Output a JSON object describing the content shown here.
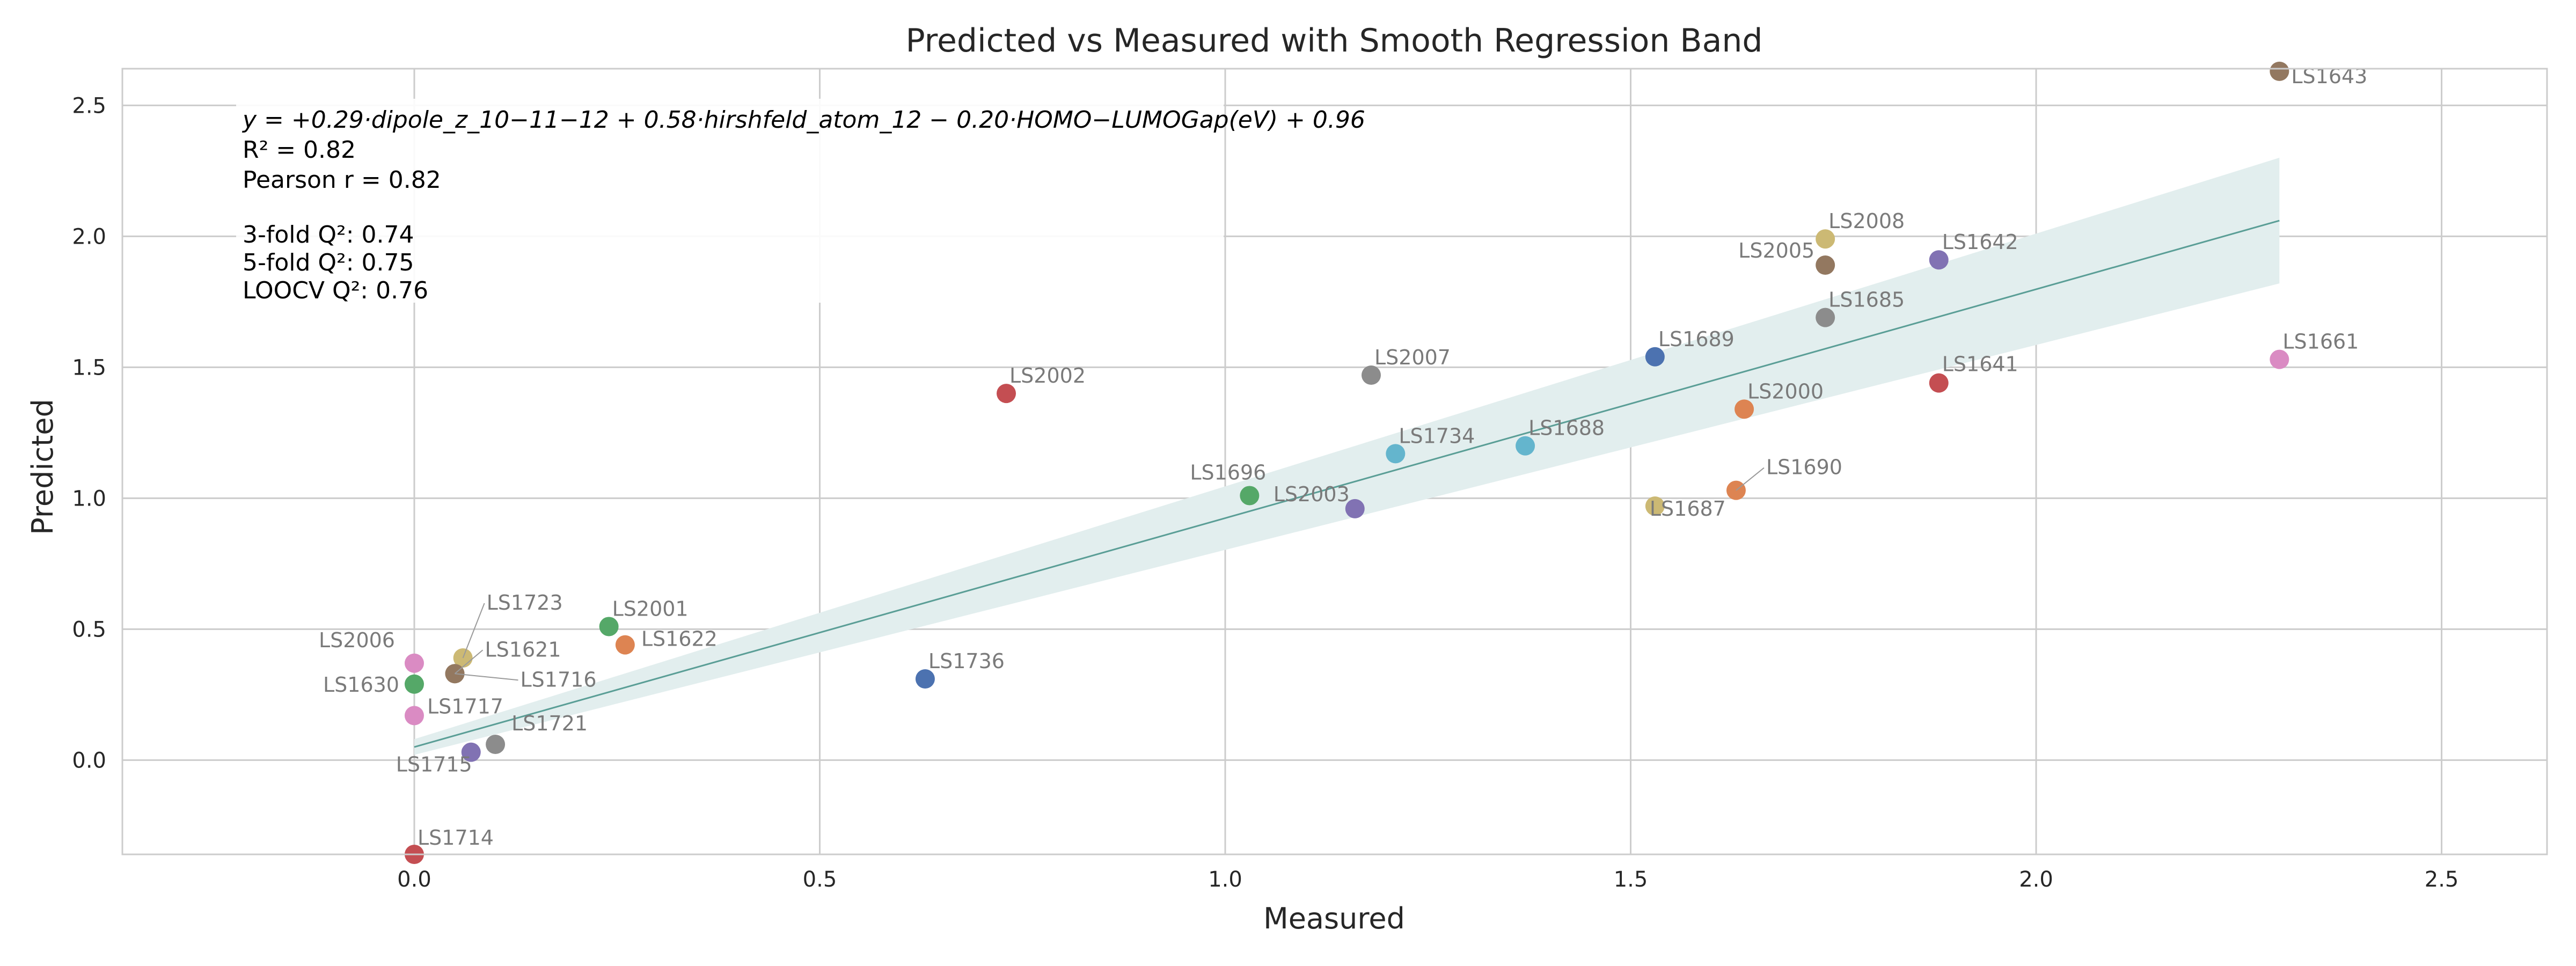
{
  "chart_data": {
    "type": "scatter",
    "title": "Predicted vs Measured with Smooth Regression Band",
    "xlabel": "Measured",
    "ylabel": "Predicted",
    "xlim": [
      -0.36,
      2.63
    ],
    "ylim": [
      -0.36,
      2.64
    ],
    "xticks": [
      "0.0",
      "0.5",
      "1.0",
      "1.5",
      "2.0",
      "2.5"
    ],
    "xtick_values": [
      0.0,
      0.5,
      1.0,
      1.5,
      2.0,
      2.5
    ],
    "yticks": [
      "0.0",
      "0.5",
      "1.0",
      "1.5",
      "2.0",
      "2.5"
    ],
    "ytick_values": [
      0.0,
      0.5,
      1.0,
      1.5,
      2.0,
      2.5
    ],
    "grid": true,
    "regression": {
      "x_range": [
        0.0,
        2.3
      ],
      "y_start": 0.05,
      "y_end": 2.06,
      "band_half_width": 0.0,
      "band_half_width_end": 0.21,
      "line_color": "#5a9e96",
      "band_color": "#e2eeee"
    },
    "annotation": {
      "equation": "y = +0.29·dipole_z_10−11−12 + 0.58·hirshfeld_atom_12 − 0.20·HOMO−LUMOGap(eV) + 0.96",
      "r2": "R² = 0.82",
      "pearson": "Pearson r = 0.82",
      "q2_3fold": "3-fold Q²: 0.74",
      "q2_5fold": "5-fold Q²: 0.75",
      "q2_loocv": "LOOCV Q²: 0.76"
    },
    "points": [
      {
        "label": "LS1643",
        "x": 2.3,
        "y": 2.63,
        "color": "#937860"
      },
      {
        "label": "LS2008",
        "x": 1.74,
        "y": 1.99,
        "color": "#ccb974"
      },
      {
        "label": "LS2005",
        "x": 1.74,
        "y": 1.89,
        "color": "#937860"
      },
      {
        "label": "LS1642",
        "x": 1.88,
        "y": 1.91,
        "color": "#8172b3"
      },
      {
        "label": "LS1685",
        "x": 1.74,
        "y": 1.69,
        "color": "#8c8c8c"
      },
      {
        "label": "LS1661",
        "x": 2.3,
        "y": 1.53,
        "color": "#da8bc3"
      },
      {
        "label": "LS1689",
        "x": 1.53,
        "y": 1.54,
        "color": "#4c72b0"
      },
      {
        "label": "LS1641",
        "x": 1.88,
        "y": 1.44,
        "color": "#c44e52"
      },
      {
        "label": "LS2007",
        "x": 1.18,
        "y": 1.47,
        "color": "#8c8c8c"
      },
      {
        "label": "LS2002",
        "x": 0.73,
        "y": 1.4,
        "color": "#c44e52"
      },
      {
        "label": "LS2000",
        "x": 1.64,
        "y": 1.34,
        "color": "#dd8452"
      },
      {
        "label": "LS1688",
        "x": 1.37,
        "y": 1.2,
        "color": "#64b5cd"
      },
      {
        "label": "LS1734",
        "x": 1.21,
        "y": 1.17,
        "color": "#64b5cd"
      },
      {
        "label": "LS1696",
        "x": 1.03,
        "y": 1.01,
        "color": "#55a868"
      },
      {
        "label": "LS2003",
        "x": 1.16,
        "y": 0.96,
        "color": "#8172b3"
      },
      {
        "label": "LS1690",
        "x": 1.63,
        "y": 1.03,
        "color": "#dd8452"
      },
      {
        "label": "LS1687",
        "x": 1.53,
        "y": 0.97,
        "color": "#ccb974"
      },
      {
        "label": "LS2001",
        "x": 0.24,
        "y": 0.51,
        "color": "#55a868"
      },
      {
        "label": "LS1622",
        "x": 0.26,
        "y": 0.44,
        "color": "#dd8452"
      },
      {
        "label": "LS1723",
        "x": 0.06,
        "y": 0.39,
        "color": "#ccb974"
      },
      {
        "label": "LS1621",
        "x": 0.05,
        "y": 0.33,
        "color": "#937860"
      },
      {
        "label": "LS2006",
        "x": 0.0,
        "y": 0.37,
        "color": "#da8bc3"
      },
      {
        "label": "LS1630",
        "x": 0.0,
        "y": 0.29,
        "color": "#55a868"
      },
      {
        "label": "LS1716",
        "x": 0.05,
        "y": 0.33,
        "color": "#937860"
      },
      {
        "label": "LS1717",
        "x": 0.0,
        "y": 0.17,
        "color": "#da8bc3"
      },
      {
        "label": "LS1736",
        "x": 0.63,
        "y": 0.31,
        "color": "#4c72b0"
      },
      {
        "label": "LS1721",
        "x": 0.1,
        "y": 0.06,
        "color": "#8c8c8c"
      },
      {
        "label": "LS1715",
        "x": 0.07,
        "y": 0.03,
        "color": "#8172b3"
      },
      {
        "label": "LS1714",
        "x": 0.0,
        "y": -0.36,
        "color": "#c44e52"
      }
    ]
  }
}
